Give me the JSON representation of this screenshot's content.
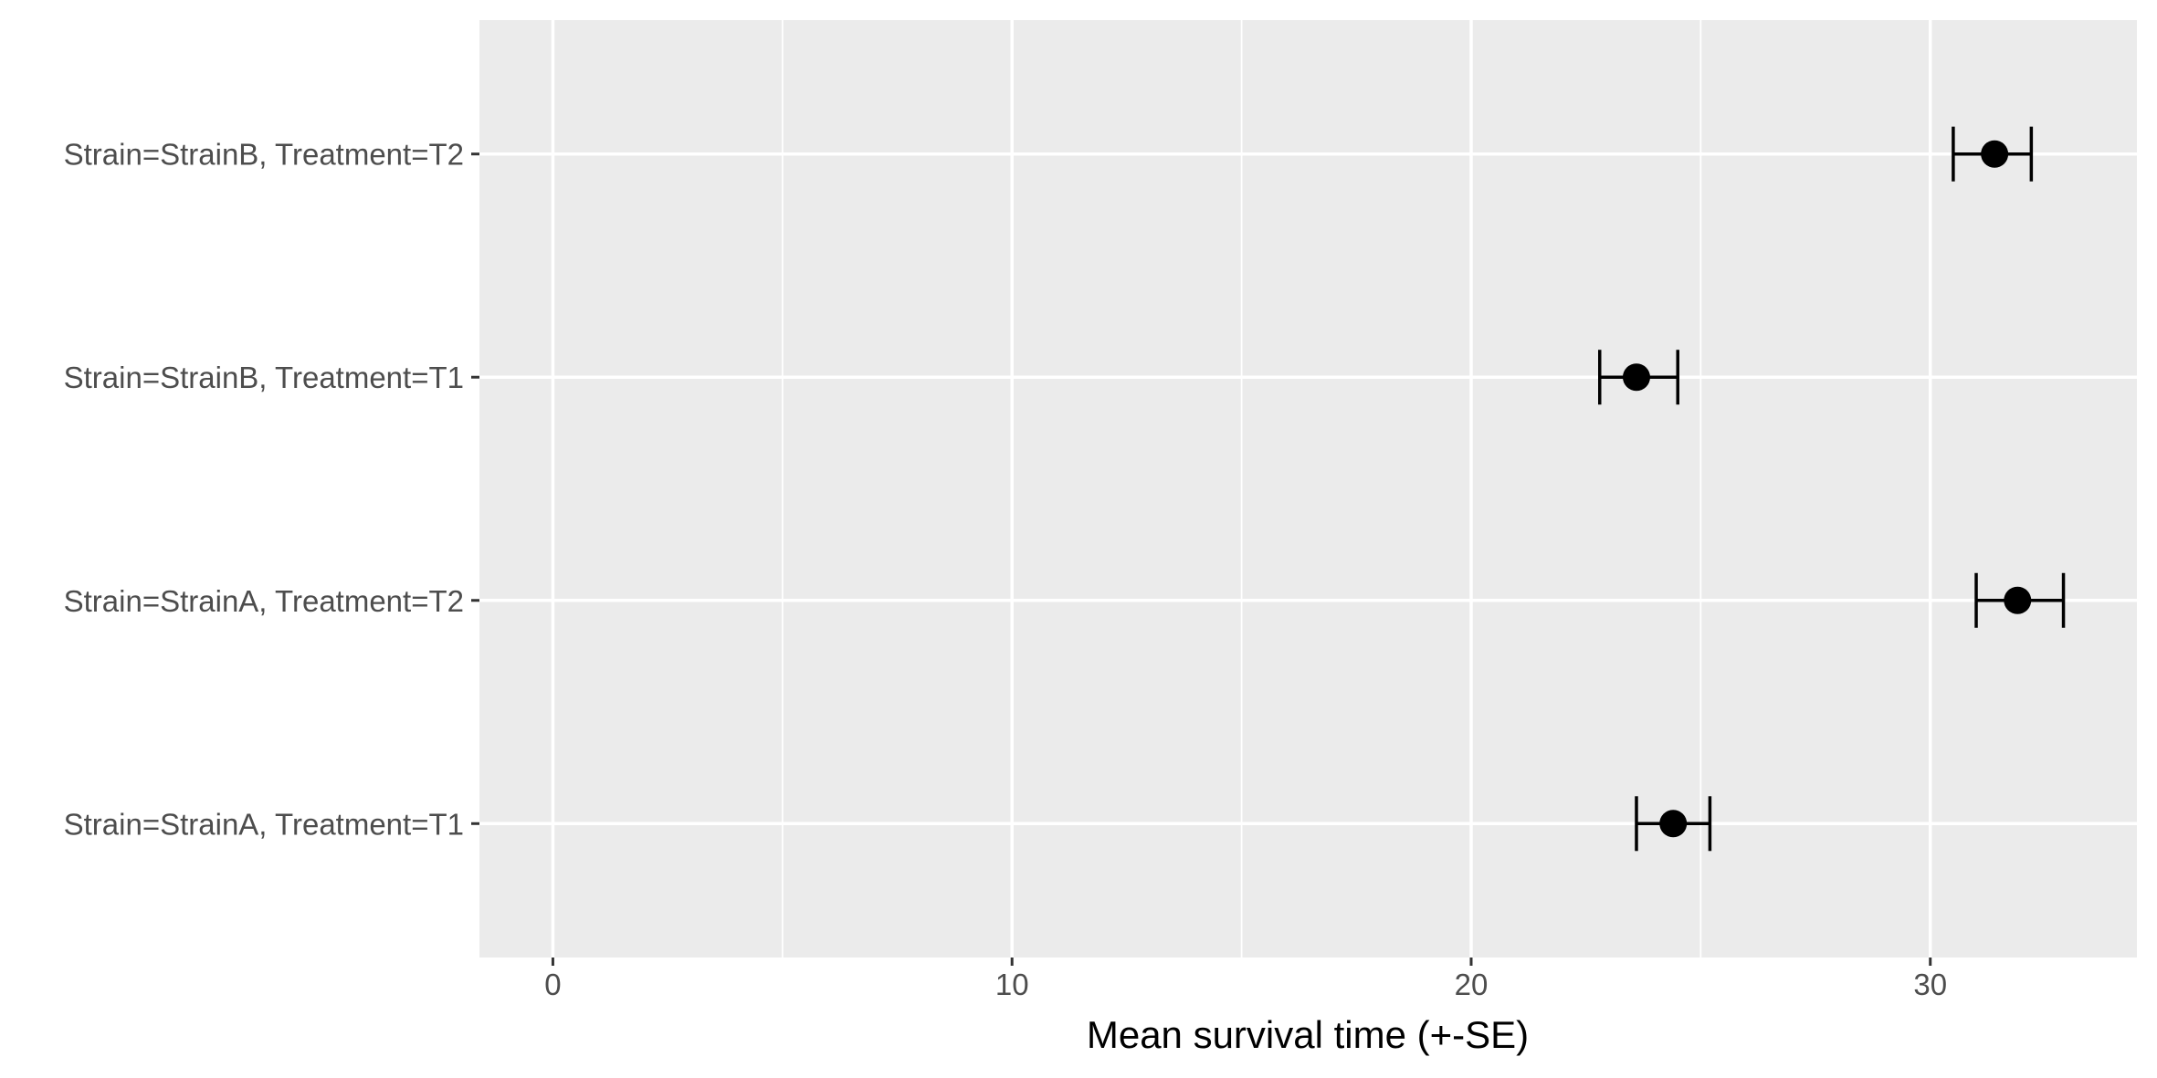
{
  "chart_data": {
    "type": "scatter",
    "orientation": "horizontal",
    "title": "",
    "xlabel": "Mean survival time (+-SE)",
    "ylabel": "",
    "xlim": [
      -1.6,
      34.5
    ],
    "x_ticks": [
      0,
      10,
      20,
      30
    ],
    "x_tick_labels": [
      "0",
      "10",
      "20",
      "30"
    ],
    "x_minor_ticks": [
      5,
      15,
      25
    ],
    "grid": true,
    "legend": "none",
    "categories": [
      "Strain=StrainA, Treatment=T1",
      "Strain=StrainA, Treatment=T2",
      "Strain=StrainB, Treatment=T1",
      "Strain=StrainB, Treatment=T2"
    ],
    "values": [
      24.4,
      31.9,
      23.6,
      31.4
    ],
    "error_low": [
      23.6,
      31.0,
      22.8,
      30.5
    ],
    "error_high": [
      25.2,
      32.9,
      24.5,
      32.2
    ],
    "colors": {
      "panel_background": "#ebebeb",
      "grid": "#ffffff",
      "point": "#000000",
      "error_bar": "#000000",
      "tick_label": "#4d4d4d"
    }
  }
}
